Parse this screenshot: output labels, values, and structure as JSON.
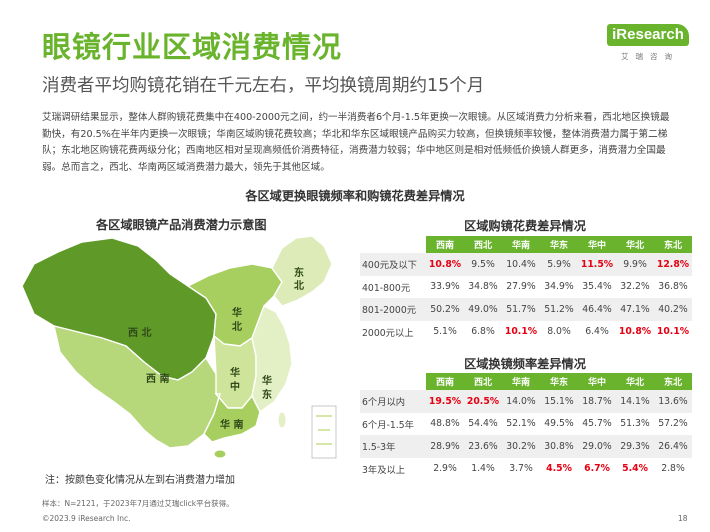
{
  "header": {
    "title": "眼镜行业区域消费情况",
    "subtitle": "消费者平均购镜花销在千元左右，平均换镜周期约15个月"
  },
  "logo": {
    "brand": "iResearch",
    "sub": "艾瑞咨询",
    "color": "#6ab42d"
  },
  "intro": "艾瑞调研结果显示，整体人群购镜花费集中在400-2000元之间，约一半消费者6个月-1.5年更换一次眼镜。从区域消费力分析来看，西北地区换镜最勤快，有20.5%在半年内更换一次眼镜；华南区域购镜花费较高；华北和华东区域眼镜产品购买力较高，但换镜频率较慢，整体消费潜力属于第二梯队；东北地区购镜花费两级分化；西南地区相对呈现高频低价消费特征，消费潜力较弱；华中地区则是相对低频低价换镜人群更多，消费潜力全国最弱。总而言之，西北、华南两区域消费潜力最大，领先于其他区域。",
  "section_title": "各区域更换眼镜频率和购镜花费差异情况",
  "map": {
    "title": "各区域眼镜产品消费潜力示意图",
    "labels": {
      "northeast": "东\n北",
      "northwest": "西  北",
      "north": "华\n北",
      "southwest": "西  南",
      "central": "华\n中",
      "east": "华\n东",
      "south": "华 南"
    },
    "note": "注：按颜色变化情况从左到右消费潜力增加",
    "colors": {
      "dark": "#5f9a28",
      "mid": "#8cc63f",
      "light": "#c8e08a",
      "pale": "#e3efc4",
      "border": "#ffffff"
    }
  },
  "spend_table": {
    "title": "区域购镜花费差异情况",
    "columns": [
      "西南",
      "西北",
      "华南",
      "华东",
      "华中",
      "华北",
      "东北"
    ],
    "rows": [
      {
        "label": "400元及以下",
        "values": [
          "10.8%",
          "9.5%",
          "10.4%",
          "5.9%",
          "11.5%",
          "9.9%",
          "12.8%"
        ],
        "highlight": [
          0,
          4,
          6
        ]
      },
      {
        "label": "401-800元",
        "values": [
          "33.9%",
          "34.8%",
          "27.9%",
          "34.9%",
          "35.4%",
          "32.2%",
          "36.8%"
        ],
        "highlight": []
      },
      {
        "label": "801-2000元",
        "values": [
          "50.2%",
          "49.0%",
          "51.7%",
          "51.2%",
          "46.4%",
          "47.1%",
          "40.2%"
        ],
        "highlight": []
      },
      {
        "label": "2000元以上",
        "values": [
          "5.1%",
          "6.8%",
          "10.1%",
          "8.0%",
          "6.4%",
          "10.8%",
          "10.1%"
        ],
        "highlight": [
          2,
          5,
          6
        ]
      }
    ]
  },
  "freq_table": {
    "title": "区域换镜频率差异情况",
    "columns": [
      "西南",
      "西北",
      "华南",
      "华东",
      "华中",
      "华北",
      "东北"
    ],
    "rows": [
      {
        "label": "6个月以内",
        "values": [
          "19.5%",
          "20.5%",
          "14.0%",
          "15.1%",
          "18.7%",
          "14.1%",
          "13.6%"
        ],
        "highlight": [
          0,
          1
        ]
      },
      {
        "label": "6个月-1.5年",
        "values": [
          "48.8%",
          "54.4%",
          "52.1%",
          "49.5%",
          "45.7%",
          "51.3%",
          "57.2%"
        ],
        "highlight": []
      },
      {
        "label": "1.5-3年",
        "values": [
          "28.9%",
          "23.6%",
          "30.2%",
          "30.8%",
          "29.0%",
          "29.3%",
          "26.4%"
        ],
        "highlight": []
      },
      {
        "label": "3年及以上",
        "values": [
          "2.9%",
          "1.4%",
          "3.7%",
          "4.5%",
          "6.7%",
          "5.4%",
          "2.8%"
        ],
        "highlight": [
          3,
          4,
          5
        ]
      }
    ]
  },
  "footer": {
    "sample": "样本：N=2121，于2023年7月通过艾瑞click平台获得。",
    "copyright": "©2023.9 iResearch Inc.",
    "page": "18"
  },
  "colors": {
    "accent": "#6ab42d",
    "highlight_red": "#e60012"
  }
}
